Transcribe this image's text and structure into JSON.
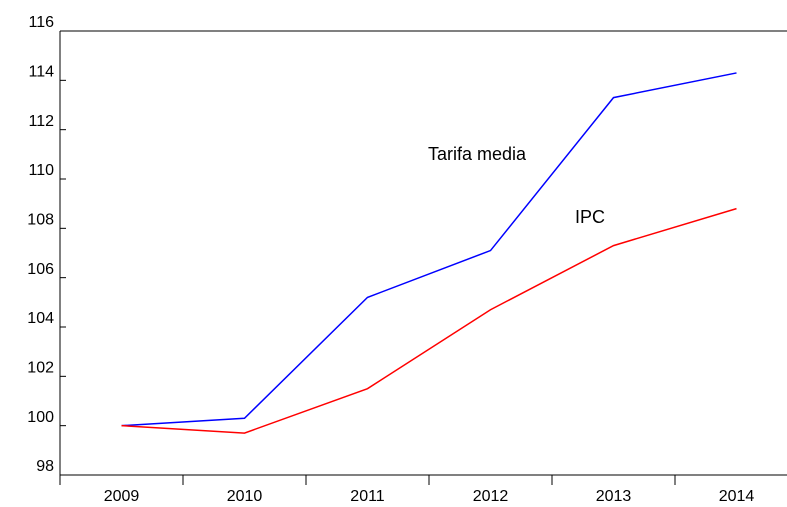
{
  "chart_data": {
    "type": "line",
    "categories": [
      "2009",
      "2010",
      "2011",
      "2012",
      "2013",
      "2014"
    ],
    "series": [
      {
        "name": "Tarifa media",
        "color": "#0000ff",
        "values": [
          100,
          100.3,
          105.2,
          107.1,
          113.3,
          114.3
        ]
      },
      {
        "name": "IPC",
        "color": "#ff0000",
        "values": [
          100,
          99.7,
          101.5,
          104.7,
          107.3,
          108.8
        ]
      }
    ],
    "ylim": [
      98,
      116
    ],
    "yticks": [
      98,
      100,
      102,
      104,
      106,
      108,
      110,
      112,
      114,
      116
    ]
  }
}
